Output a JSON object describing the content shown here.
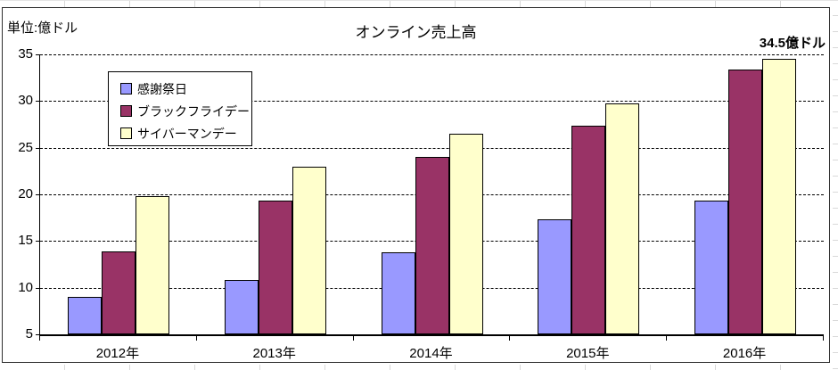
{
  "chart_data": {
    "type": "bar",
    "title": "オンライン売上高",
    "unit_label": "単位:億ドル",
    "annotation": "34.5億ドル",
    "categories": [
      "2012年",
      "2013年",
      "2014年",
      "2015年",
      "2016年"
    ],
    "series": [
      {
        "name": "感謝祭日",
        "color": "#9999FF",
        "values": [
          9.0,
          10.8,
          13.8,
          17.3,
          19.3
        ]
      },
      {
        "name": "ブラックフライデー",
        "color": "#993366",
        "values": [
          13.9,
          19.3,
          24.0,
          27.4,
          33.4
        ]
      },
      {
        "name": "サイバーマンデー",
        "color": "#FFFFCC",
        "values": [
          19.8,
          23.0,
          26.5,
          29.7,
          34.5
        ]
      }
    ],
    "xlabel": "",
    "ylabel": "",
    "ylim": [
      5,
      35
    ],
    "ytick_step": 5,
    "yticks": [
      5,
      10,
      15,
      20,
      25,
      30,
      35
    ],
    "grid": "horizontal-dashed",
    "legend_position": "upper-left-inside",
    "bar_border_color": "#000000",
    "gridline_color": "#000000",
    "background_color": "#FFFFFF"
  }
}
